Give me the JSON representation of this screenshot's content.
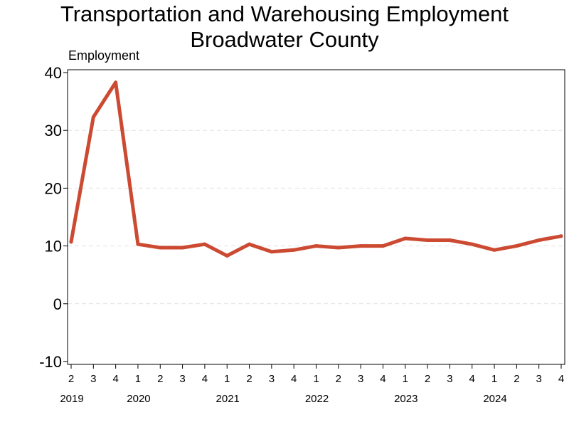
{
  "chart_data": {
    "type": "line",
    "title": "Transportation and Warehousing Employment",
    "subtitle": "Broadwater County",
    "ylabel": "Employment",
    "xlabel": "",
    "ylim": [
      -10,
      40
    ],
    "yticks": [
      -10,
      0,
      10,
      20,
      30,
      40
    ],
    "grid": "horizontal dashed",
    "legend": "none",
    "line_color": "#cc4a32",
    "x": [
      "2019 Q2",
      "2019 Q3",
      "2019 Q4",
      "2020 Q1",
      "2020 Q2",
      "2020 Q3",
      "2020 Q4",
      "2021 Q1",
      "2021 Q2",
      "2021 Q3",
      "2021 Q4",
      "2022 Q1",
      "2022 Q2",
      "2022 Q3",
      "2022 Q4",
      "2023 Q1",
      "2023 Q2",
      "2023 Q3",
      "2023 Q4",
      "2024 Q1",
      "2024 Q2",
      "2024 Q3",
      "2024 Q4"
    ],
    "quarter_labels": [
      "2",
      "3",
      "4",
      "1",
      "2",
      "3",
      "4",
      "1",
      "2",
      "3",
      "4",
      "1",
      "2",
      "3",
      "4",
      "1",
      "2",
      "3",
      "4",
      "1",
      "2",
      "3",
      "4"
    ],
    "year_labels": [
      {
        "label": "2019",
        "index": 0
      },
      {
        "label": "2020",
        "index": 3
      },
      {
        "label": "2021",
        "index": 7
      },
      {
        "label": "2022",
        "index": 11
      },
      {
        "label": "2023",
        "index": 15
      },
      {
        "label": "2024",
        "index": 19
      }
    ],
    "series": [
      {
        "values": [
          10.7,
          32.3,
          38.3,
          10.3,
          9.7,
          9.7,
          10.3,
          8.3,
          10.3,
          9.0,
          9.3,
          10.0,
          9.7,
          10.0,
          10.0,
          11.3,
          11.0,
          11.0,
          10.3,
          9.3,
          10.0,
          11.0,
          11.7
        ]
      }
    ]
  }
}
